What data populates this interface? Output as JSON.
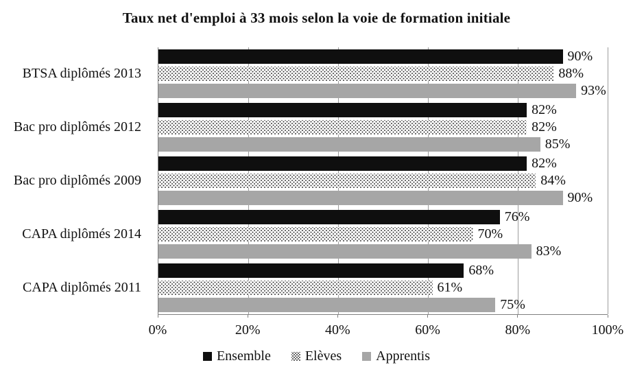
{
  "chart_data": {
    "type": "bar",
    "orientation": "horizontal",
    "title": "Taux net d'emploi à 33 mois selon la voie de formation initiale",
    "categories": [
      "BTSA diplômés 2013",
      "Bac pro diplômés 2012",
      "Bac pro diplômés 2009",
      "CAPA diplômés 2014",
      "CAPA diplômés 2011"
    ],
    "series": [
      {
        "name": "Ensemble",
        "style": "solid-black",
        "color": "#0f0f0f",
        "values": [
          90,
          82,
          82,
          76,
          68
        ]
      },
      {
        "name": "Elèves",
        "style": "dotted-pattern",
        "color": "#ffffff",
        "dot_color": "#383838",
        "values": [
          88,
          82,
          84,
          70,
          61
        ]
      },
      {
        "name": "Apprentis",
        "style": "solid-gray",
        "color": "#a6a6a6",
        "values": [
          93,
          85,
          90,
          83,
          75
        ]
      }
    ],
    "x_ticks": [
      "0%",
      "20%",
      "40%",
      "60%",
      "80%",
      "100%"
    ],
    "xlim": [
      0,
      100
    ],
    "value_suffix": "%",
    "grid": true,
    "gridline_color": "#9c9c9c",
    "axis_color": "#7f7f7f",
    "legend_position": "bottom"
  }
}
